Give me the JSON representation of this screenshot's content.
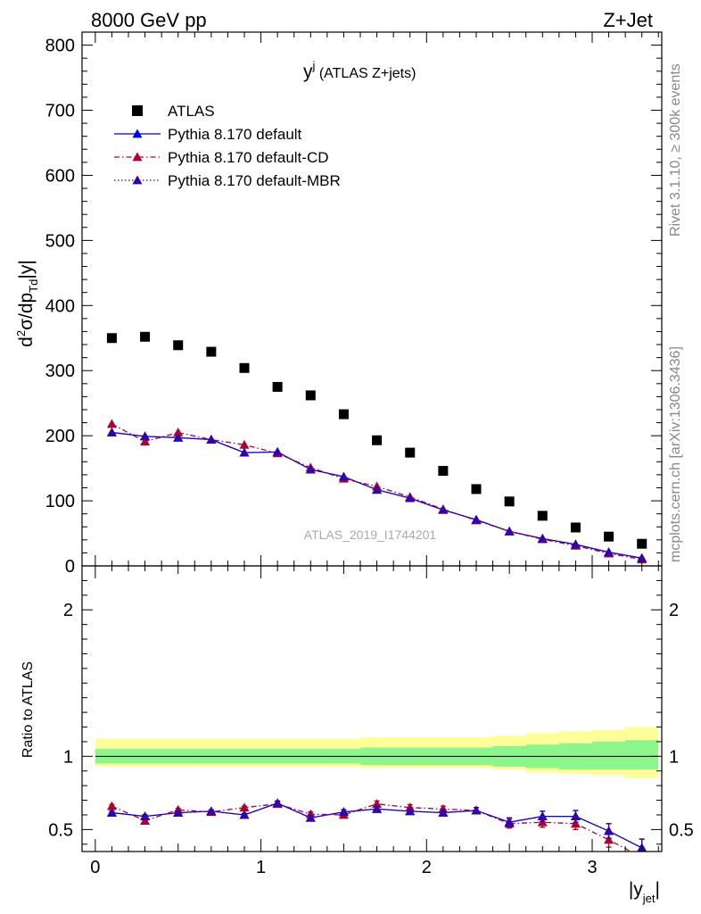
{
  "header": {
    "left": "8000 GeV pp",
    "right": "Z+Jet",
    "side_top": "Rivet 3.1.10, ≥ 300k events",
    "side_bottom": "mcplots.cern.ch [arXiv:1306.3436]",
    "watermark": "ATLAS_2019_I1744201"
  },
  "chart_data": [
    {
      "type": "scatter",
      "title_main": "y",
      "title_sup": "j",
      "title_rest": " (ATLAS Z+jets)",
      "ylabel": "d²σ/dp_Td|y|",
      "xlim": [
        -0.08,
        3.42
      ],
      "ylim": [
        0,
        820
      ],
      "yticks": [
        "0",
        "100",
        "200",
        "300",
        "400",
        "500",
        "600",
        "700",
        "800"
      ],
      "x": [
        0.1,
        0.3,
        0.5,
        0.7,
        0.9,
        1.1,
        1.3,
        1.5,
        1.7,
        1.9,
        2.1,
        2.3,
        2.5,
        2.7,
        2.9,
        3.1,
        3.3
      ],
      "series": [
        {
          "name": "ATLAS",
          "color": "#000000",
          "marker": "square",
          "values": [
            350,
            352,
            339,
            329,
            304,
            275,
            262,
            233,
            193,
            174,
            146,
            118,
            99,
            77,
            59,
            45,
            34
          ]
        },
        {
          "name": "Pythia 8.170 default",
          "color": "#0000dd",
          "marker": "triangle",
          "line": "solid",
          "values": [
            205,
            199,
            197,
            194,
            174,
            175,
            148,
            137,
            117,
            104,
            86,
            71,
            53,
            42,
            33,
            21,
            12
          ]
        },
        {
          "name": "Pythia 8.170 default-CD",
          "color": "#b00030",
          "marker": "triangle",
          "line": "dashdot",
          "values": [
            218,
            191,
            205,
            194,
            186,
            173,
            151,
            134,
            122,
            106,
            87,
            70,
            53,
            41,
            31,
            19,
            10
          ]
        },
        {
          "name": "Pythia 8.170 default-MBR",
          "color": "#3300aa",
          "marker": "triangle",
          "line": "dotted",
          "values": [
            205,
            199,
            197,
            194,
            174,
            175,
            148,
            137,
            117,
            104,
            86,
            71,
            53,
            42,
            33,
            21,
            12
          ]
        }
      ]
    },
    {
      "type": "scatter",
      "ylabel": "Ratio to ATLAS",
      "xlabel": "|y_jet|",
      "xlim": [
        -0.08,
        3.42
      ],
      "ylim": [
        0.35,
        2.3
      ],
      "yticks": [
        "0.5",
        "1",
        "2"
      ],
      "xticks": [
        "0",
        "1",
        "2",
        "3"
      ],
      "x": [
        0.1,
        0.3,
        0.5,
        0.7,
        0.9,
        1.1,
        1.3,
        1.5,
        1.7,
        1.9,
        2.1,
        2.3,
        2.5,
        2.7,
        2.9,
        3.1,
        3.3
      ],
      "band_edges": [
        0.0,
        0.2,
        0.4,
        0.6,
        0.8,
        1.0,
        1.2,
        1.4,
        1.6,
        1.8,
        2.0,
        2.2,
        2.4,
        2.6,
        2.8,
        3.0,
        3.2,
        3.4
      ],
      "band_green": [
        [
          0.95,
          1.05
        ],
        [
          0.95,
          1.05
        ],
        [
          0.95,
          1.05
        ],
        [
          0.95,
          1.05
        ],
        [
          0.95,
          1.05
        ],
        [
          0.95,
          1.05
        ],
        [
          0.95,
          1.05
        ],
        [
          0.95,
          1.05
        ],
        [
          0.94,
          1.06
        ],
        [
          0.94,
          1.06
        ],
        [
          0.94,
          1.06
        ],
        [
          0.94,
          1.06
        ],
        [
          0.93,
          1.07
        ],
        [
          0.92,
          1.08
        ],
        [
          0.91,
          1.09
        ],
        [
          0.91,
          1.1
        ],
        [
          0.91,
          1.11
        ]
      ],
      "band_yellow": [
        [
          0.93,
          1.12
        ],
        [
          0.93,
          1.12
        ],
        [
          0.93,
          1.12
        ],
        [
          0.93,
          1.12
        ],
        [
          0.93,
          1.12
        ],
        [
          0.93,
          1.12
        ],
        [
          0.93,
          1.12
        ],
        [
          0.93,
          1.12
        ],
        [
          0.92,
          1.13
        ],
        [
          0.92,
          1.13
        ],
        [
          0.92,
          1.13
        ],
        [
          0.92,
          1.13
        ],
        [
          0.91,
          1.14
        ],
        [
          0.89,
          1.16
        ],
        [
          0.88,
          1.17
        ],
        [
          0.87,
          1.18
        ],
        [
          0.85,
          1.2
        ]
      ],
      "series": [
        {
          "name": "Pythia 8.170 default",
          "color": "#0000dd",
          "marker": "triangle",
          "line": "solid",
          "values": [
            0.615,
            0.59,
            0.615,
            0.625,
            0.6,
            0.68,
            0.58,
            0.62,
            0.64,
            0.625,
            0.615,
            0.63,
            0.55,
            0.59,
            0.59,
            0.49,
            0.375
          ],
          "errors": [
            0.01,
            0.01,
            0.01,
            0.01,
            0.01,
            0.015,
            0.015,
            0.015,
            0.02,
            0.02,
            0.02,
            0.02,
            0.03,
            0.035,
            0.04,
            0.05,
            0.06
          ]
        },
        {
          "name": "Pythia 8.170 default-CD",
          "color": "#b00030",
          "marker": "triangle",
          "line": "dashdot",
          "values": [
            0.66,
            0.56,
            0.635,
            0.62,
            0.65,
            0.675,
            0.605,
            0.6,
            0.675,
            0.65,
            0.64,
            0.63,
            0.54,
            0.55,
            0.54,
            0.43,
            0.31
          ],
          "errors": [
            0.01,
            0.01,
            0.01,
            0.01,
            0.01,
            0.015,
            0.015,
            0.015,
            0.02,
            0.02,
            0.02,
            0.02,
            0.03,
            0.035,
            0.04,
            0.05,
            0.06
          ]
        },
        {
          "name": "Pythia 8.170 default-MBR",
          "color": "#3300aa",
          "marker": "triangle",
          "line": "dotted",
          "values": [
            0.615,
            0.59,
            0.615,
            0.625,
            0.6,
            0.68,
            0.58,
            0.62,
            0.64,
            0.625,
            0.615,
            0.63,
            0.55,
            0.59,
            0.59,
            0.49,
            0.375
          ],
          "errors": [
            0.01,
            0.01,
            0.01,
            0.01,
            0.01,
            0.015,
            0.015,
            0.015,
            0.02,
            0.02,
            0.02,
            0.02,
            0.03,
            0.035,
            0.04,
            0.05,
            0.06
          ]
        }
      ]
    }
  ]
}
